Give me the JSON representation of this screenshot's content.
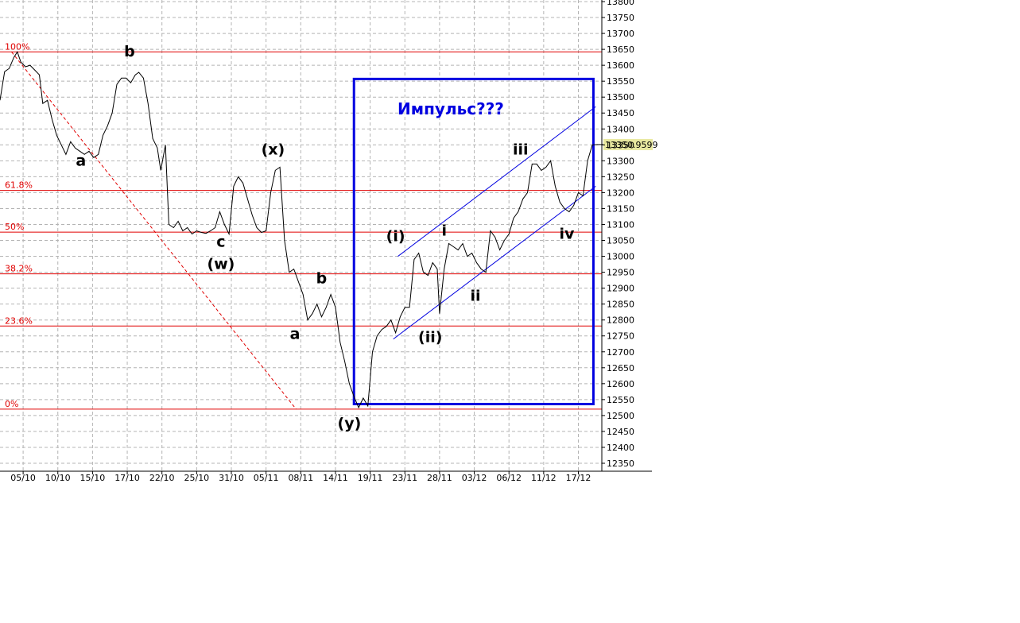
{
  "chart_data": {
    "type": "line",
    "yticks": [
      12350,
      12400,
      12450,
      12500,
      12550,
      12600,
      12650,
      12700,
      12750,
      12800,
      12850,
      12900,
      12950,
      13000,
      13050,
      13100,
      13150,
      13200,
      13250,
      13300,
      13350,
      13400,
      13450,
      13500,
      13550,
      13600,
      13650,
      13700,
      13750,
      13800
    ],
    "ylim": [
      12330,
      13800
    ],
    "xlim": [
      0,
      59
    ],
    "x_ticks": [
      {
        "i": 2,
        "label": "05/10"
      },
      {
        "i": 5,
        "label": "10/10"
      },
      {
        "i": 8,
        "label": "15/10"
      },
      {
        "i": 11,
        "label": "17/10"
      },
      {
        "i": 14,
        "label": "22/10"
      },
      {
        "i": 17,
        "label": "25/10"
      },
      {
        "i": 20,
        "label": "31/10"
      },
      {
        "i": 23,
        "label": "05/11"
      },
      {
        "i": 26,
        "label": "08/11"
      },
      {
        "i": 29,
        "label": "14/11"
      },
      {
        "i": 32,
        "label": "19/11"
      },
      {
        "i": 35,
        "label": "23/11"
      },
      {
        "i": 38,
        "label": "28/11"
      },
      {
        "i": 41,
        "label": "03/12"
      },
      {
        "i": 44,
        "label": "06/12"
      },
      {
        "i": 47,
        "label": "11/12"
      },
      {
        "i": 50,
        "label": "17/12"
      }
    ],
    "series": [
      {
        "points": [
          [
            0.0,
            13490
          ],
          [
            0.4,
            13580
          ],
          [
            0.8,
            13590
          ],
          [
            1.2,
            13625
          ],
          [
            1.5,
            13642
          ],
          [
            1.8,
            13610
          ],
          [
            2.2,
            13595
          ],
          [
            2.6,
            13600
          ],
          [
            3.0,
            13585
          ],
          [
            3.4,
            13570
          ],
          [
            3.7,
            13480
          ],
          [
            4.1,
            13490
          ],
          [
            4.5,
            13430
          ],
          [
            4.9,
            13380
          ],
          [
            5.3,
            13350
          ],
          [
            5.7,
            13320
          ],
          [
            6.1,
            13360
          ],
          [
            6.5,
            13340
          ],
          [
            6.9,
            13330
          ],
          [
            7.3,
            13320
          ],
          [
            7.7,
            13330
          ],
          [
            8.1,
            13310
          ],
          [
            8.5,
            13320
          ],
          [
            8.9,
            13380
          ],
          [
            9.3,
            13410
          ],
          [
            9.7,
            13450
          ],
          [
            10.1,
            13540
          ],
          [
            10.5,
            13560
          ],
          [
            10.9,
            13560
          ],
          [
            11.3,
            13545
          ],
          [
            11.7,
            13570
          ],
          [
            12.0,
            13578
          ],
          [
            12.4,
            13560
          ],
          [
            12.8,
            13480
          ],
          [
            13.2,
            13370
          ],
          [
            13.6,
            13340
          ],
          [
            13.9,
            13270
          ],
          [
            14.3,
            13350
          ],
          [
            14.6,
            13100
          ],
          [
            15.0,
            13090
          ],
          [
            15.4,
            13110
          ],
          [
            15.8,
            13080
          ],
          [
            16.2,
            13090
          ],
          [
            16.6,
            13070
          ],
          [
            17.0,
            13080
          ],
          [
            17.4,
            13075
          ],
          [
            17.8,
            13072
          ],
          [
            18.2,
            13080
          ],
          [
            18.6,
            13090
          ],
          [
            19.0,
            13140
          ],
          [
            19.4,
            13100
          ],
          [
            19.8,
            13070
          ],
          [
            20.2,
            13220
          ],
          [
            20.6,
            13250
          ],
          [
            21.0,
            13230
          ],
          [
            21.4,
            13180
          ],
          [
            21.8,
            13130
          ],
          [
            22.2,
            13090
          ],
          [
            22.6,
            13075
          ],
          [
            23.0,
            13080
          ],
          [
            23.4,
            13200
          ],
          [
            23.8,
            13270
          ],
          [
            24.2,
            13280
          ],
          [
            24.6,
            13050
          ],
          [
            25.0,
            12950
          ],
          [
            25.4,
            12960
          ],
          [
            25.8,
            12920
          ],
          [
            26.2,
            12880
          ],
          [
            26.6,
            12800
          ],
          [
            27.0,
            12820
          ],
          [
            27.4,
            12850
          ],
          [
            27.8,
            12810
          ],
          [
            28.2,
            12840
          ],
          [
            28.6,
            12880
          ],
          [
            29.0,
            12840
          ],
          [
            29.4,
            12730
          ],
          [
            29.8,
            12670
          ],
          [
            30.2,
            12600
          ],
          [
            30.6,
            12560
          ],
          [
            31.0,
            12525
          ],
          [
            31.4,
            12555
          ],
          [
            31.8,
            12530
          ],
          [
            32.2,
            12700
          ],
          [
            32.6,
            12750
          ],
          [
            33.0,
            12770
          ],
          [
            33.4,
            12780
          ],
          [
            33.8,
            12800
          ],
          [
            34.2,
            12760
          ],
          [
            34.6,
            12810
          ],
          [
            35.0,
            12840
          ],
          [
            35.4,
            12840
          ],
          [
            35.8,
            12990
          ],
          [
            36.2,
            13010
          ],
          [
            36.6,
            12950
          ],
          [
            37.0,
            12940
          ],
          [
            37.4,
            12980
          ],
          [
            37.8,
            12960
          ],
          [
            38.0,
            12820
          ],
          [
            38.4,
            12960
          ],
          [
            38.8,
            13040
          ],
          [
            39.2,
            13030
          ],
          [
            39.6,
            13020
          ],
          [
            40.0,
            13040
          ],
          [
            40.4,
            13000
          ],
          [
            40.8,
            13010
          ],
          [
            41.2,
            12980
          ],
          [
            41.6,
            12960
          ],
          [
            42.0,
            12950
          ],
          [
            42.4,
            13080
          ],
          [
            42.8,
            13060
          ],
          [
            43.2,
            13020
          ],
          [
            43.6,
            13050
          ],
          [
            44.0,
            13070
          ],
          [
            44.4,
            13120
          ],
          [
            44.8,
            13140
          ],
          [
            45.2,
            13180
          ],
          [
            45.6,
            13200
          ],
          [
            46.0,
            13290
          ],
          [
            46.4,
            13290
          ],
          [
            46.8,
            13270
          ],
          [
            47.2,
            13280
          ],
          [
            47.6,
            13300
          ],
          [
            48.0,
            13220
          ],
          [
            48.4,
            13170
          ],
          [
            48.8,
            13150
          ],
          [
            49.2,
            13140
          ],
          [
            49.6,
            13160
          ],
          [
            50.0,
            13200
          ],
          [
            50.4,
            13190
          ],
          [
            50.8,
            13300
          ],
          [
            51.2,
            13350
          ],
          [
            51.7,
            13351
          ]
        ]
      }
    ],
    "last_value_label": "13350.9599",
    "last_value": 13351
  },
  "fib_levels": [
    {
      "label": "100%",
      "value": 13642
    },
    {
      "label": "61.8%",
      "value": 13207
    },
    {
      "label": "50%",
      "value": 13076
    },
    {
      "label": "38.2%",
      "value": 12945
    },
    {
      "label": "23.6%",
      "value": 12781
    },
    {
      "label": "0%",
      "value": 12520
    }
  ],
  "wave_labels": [
    {
      "text": "a",
      "i": 7.0,
      "value": 13285
    },
    {
      "text": "b",
      "i": 11.2,
      "value": 13628
    },
    {
      "text": "c",
      "i": 19.1,
      "value": 13030
    },
    {
      "text": "(w)",
      "i": 19.1,
      "value": 12960
    },
    {
      "text": "(x)",
      "i": 23.6,
      "value": 13320
    },
    {
      "text": "a",
      "i": 25.5,
      "value": 12740
    },
    {
      "text": "b",
      "i": 27.8,
      "value": 12915
    },
    {
      "text": "(y)",
      "i": 30.2,
      "value": 12460
    },
    {
      "text": "(i)",
      "i": 34.2,
      "value": 13048
    },
    {
      "text": "(ii)",
      "i": 37.2,
      "value": 12730
    },
    {
      "text": "i",
      "i": 38.4,
      "value": 13065
    },
    {
      "text": "ii",
      "i": 41.1,
      "value": 12860
    },
    {
      "text": "iii",
      "i": 45.0,
      "value": 13320
    },
    {
      "text": "iv",
      "i": 49.0,
      "value": 13055
    }
  ],
  "channel": {
    "lower": [
      [
        34.0,
        12740
      ],
      [
        51.5,
        13220
      ]
    ],
    "upper": [
      [
        34.4,
        13000
      ],
      [
        51.5,
        13470
      ]
    ]
  },
  "diagonal": [
    [
      1.0,
      13642
    ],
    [
      25.6,
      12520
    ]
  ],
  "box": {
    "i0": 30.6,
    "i1": 51.3,
    "v0": 12536,
    "v1": 13557
  },
  "annotation": {
    "text": "Импульс???",
    "color": "#0000e0"
  },
  "colors": {
    "price": "#000000",
    "fib": "#e00000",
    "channel": "#0000e0",
    "box": "#0000e0",
    "grid": "#b4b4b4",
    "value_tag": "#e8e8a0"
  }
}
